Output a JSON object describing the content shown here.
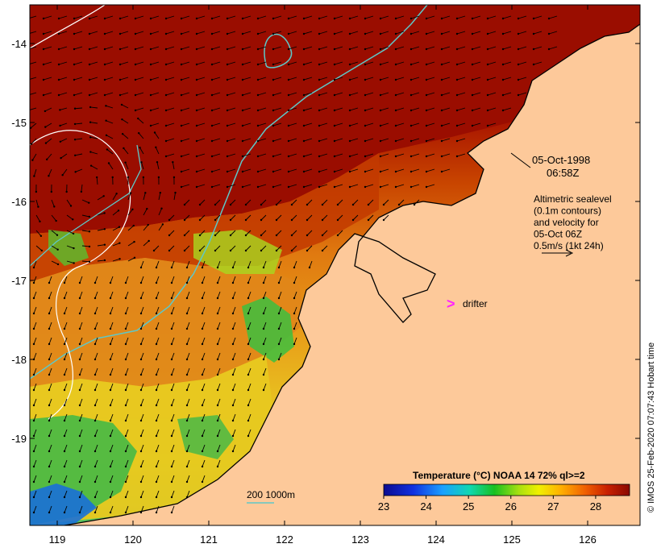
{
  "map": {
    "date_line1": "05-Oct-1998",
    "date_line2": "06:58Z",
    "altimetry_lines": [
      "Altimetric sealevel",
      "(0.1m contours)",
      "and velocity for",
      "05-Oct 06Z",
      "0.5m/s (1kt 24h)"
    ],
    "drifter_label": "drifter",
    "drifter_symbol": ">",
    "depth_legend": "200  1000m",
    "credit": "© IMOS 25-Feb-2020 07:07:43 Hobart time",
    "lon_ticks": [
      "119",
      "120",
      "121",
      "122",
      "123",
      "124",
      "125",
      "126"
    ],
    "lat_ticks": [
      "-14",
      "-15",
      "-16",
      "-17",
      "-18",
      "-19"
    ],
    "colorbar": {
      "title": "Temperature (°C) NOAA 14 72% ql>=2",
      "ticks": [
        "23",
        "24",
        "25",
        "26",
        "27",
        "28"
      ],
      "range": [
        23,
        28.8
      ]
    },
    "colors": {
      "land": "#fdc99a",
      "sst_hot": "#9a0d00",
      "drifter": "#ff22ff",
      "bathy": "#5ec8c8"
    }
  }
}
